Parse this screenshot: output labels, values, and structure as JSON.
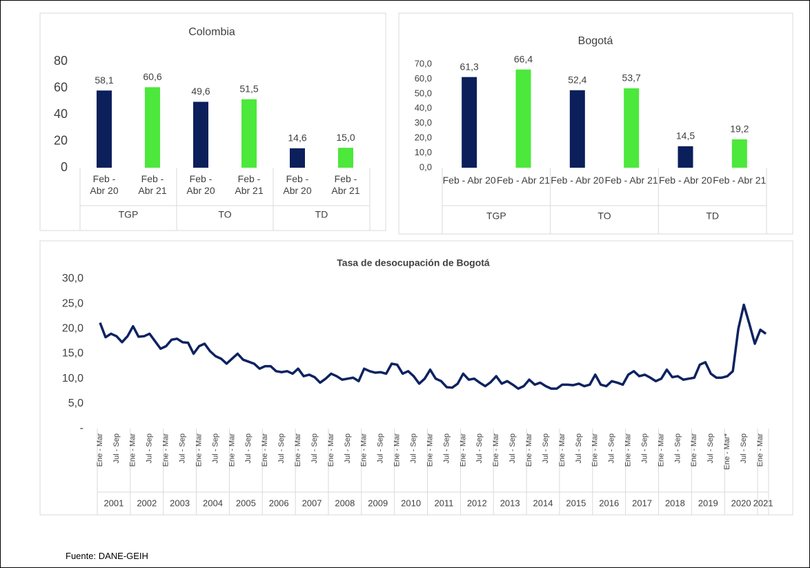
{
  "chart_data": [
    {
      "type": "bar",
      "title": "Colombia",
      "categories": [
        "TGP",
        "TO",
        "TD"
      ],
      "series": [
        {
          "name": "Feb - Abr 20",
          "color": "#0b1f5b",
          "values": [
            58.1,
            49.6,
            14.6
          ],
          "value_labels": [
            "58,1",
            "49,6",
            "14,6"
          ]
        },
        {
          "name": "Feb - Abr 21",
          "color": "#4ce83b",
          "values": [
            60.6,
            51.5,
            15.0
          ],
          "value_labels": [
            "60,6",
            "51,5",
            "15,0"
          ]
        }
      ],
      "ylim": [
        0,
        80
      ],
      "yticks": [
        0,
        20,
        40,
        60,
        80
      ]
    },
    {
      "type": "bar",
      "title": "Bogotá",
      "categories": [
        "TGP",
        "TO",
        "TD"
      ],
      "series": [
        {
          "name": "Feb - Abr 20",
          "color": "#0b1f5b",
          "values": [
            61.3,
            52.4,
            14.5
          ],
          "value_labels": [
            "61,3",
            "52,4",
            "14,5"
          ]
        },
        {
          "name": "Feb - Abr 21",
          "color": "#4ce83b",
          "values": [
            66.4,
            53.7,
            19.2
          ],
          "value_labels": [
            "66,4",
            "53,7",
            "19,2"
          ]
        }
      ],
      "ylim": [
        0,
        70
      ],
      "yticks": [
        {
          "value": 0,
          "label": "0,0"
        },
        {
          "value": 10,
          "label": "10,0"
        },
        {
          "value": 20,
          "label": "20,0"
        },
        {
          "value": 30,
          "label": "30,0"
        },
        {
          "value": 40,
          "label": "40,0"
        },
        {
          "value": 50,
          "label": "50,0"
        },
        {
          "value": 60,
          "label": "60,0"
        },
        {
          "value": 70,
          "label": "70,0"
        }
      ]
    },
    {
      "type": "line",
      "title": "Tasa de desocupación de Bogotá",
      "color": "#0d2260",
      "groups": [
        {
          "label": "2001",
          "categories": [
            "Ene - Mar",
            null,
            null,
            "Jul - Sep",
            null,
            null
          ]
        },
        {
          "label": "2002",
          "categories": [
            "Ene - Mar",
            null,
            null,
            "Jul - Sep",
            null,
            null
          ]
        },
        {
          "label": "2003",
          "categories": [
            "Ene - Mar",
            null,
            null,
            "Jul - Sep",
            null,
            null
          ]
        },
        {
          "label": "2004",
          "categories": [
            "Ene - Mar",
            null,
            null,
            "Jul - Sep",
            null,
            null
          ]
        },
        {
          "label": "2005",
          "categories": [
            "Ene - Mar",
            null,
            null,
            "Jul - Sep",
            null,
            null
          ]
        },
        {
          "label": "2006",
          "categories": [
            "Ene - Mar",
            null,
            null,
            "Jul - Sep",
            null,
            null
          ]
        },
        {
          "label": "2007",
          "categories": [
            "Ene - Mar",
            null,
            null,
            "Jul - Sep",
            null,
            null
          ]
        },
        {
          "label": "2008",
          "categories": [
            "Ene - Mar",
            null,
            null,
            "Jul - Sep",
            null,
            null
          ]
        },
        {
          "label": "2009",
          "categories": [
            "Ene - Mar",
            null,
            null,
            "Jul - Sep",
            null,
            null
          ]
        },
        {
          "label": "2010",
          "categories": [
            "Ene - Mar",
            null,
            null,
            "Jul - Sep",
            null,
            null
          ]
        },
        {
          "label": "2011",
          "categories": [
            "Ene - Mar",
            null,
            null,
            "Jul - Sep",
            null,
            null
          ]
        },
        {
          "label": "2012",
          "categories": [
            "Ene - Mar",
            null,
            null,
            "Jul - Sep",
            null,
            null
          ]
        },
        {
          "label": "2013",
          "categories": [
            "Ene - Mar",
            null,
            null,
            "Jul - Sep",
            null,
            null
          ]
        },
        {
          "label": "2014",
          "categories": [
            "Ene - Mar",
            null,
            null,
            "Jul - Sep",
            null,
            null
          ]
        },
        {
          "label": "2015",
          "categories": [
            "Ene - Mar",
            null,
            null,
            "Jul - Sep",
            null,
            null
          ]
        },
        {
          "label": "2016",
          "categories": [
            "Ene - Mar",
            null,
            null,
            "Jul - Sep",
            null,
            null
          ]
        },
        {
          "label": "2017",
          "categories": [
            "Ene - Mar",
            null,
            null,
            "Jul - Sep",
            null,
            null
          ]
        },
        {
          "label": "2018",
          "categories": [
            "Ene - Mar",
            null,
            null,
            "Jul - Sep",
            null,
            null
          ]
        },
        {
          "label": "2019",
          "categories": [
            "Ene - Mar",
            null,
            null,
            "Jul - Sep",
            null,
            null
          ]
        },
        {
          "label": "2020",
          "categories": [
            "Ene - Mar*",
            null,
            null,
            "Jul - Sep",
            null,
            null
          ]
        },
        {
          "label": "2021",
          "categories": [
            "Ene - Mar",
            null
          ]
        }
      ],
      "values": [
        21.2,
        18.3,
        19,
        18.5,
        17.3,
        18.5,
        20.5,
        18.4,
        18.5,
        19,
        17.5,
        16,
        16.5,
        17.8,
        18,
        17.3,
        17.2,
        15,
        16.5,
        17,
        15.5,
        14.5,
        14,
        13,
        14,
        15,
        13.8,
        13.4,
        13,
        12,
        12.5,
        12.5,
        11.5,
        11.3,
        11.5,
        11,
        12,
        10.5,
        10.8,
        10.3,
        9.2,
        10,
        11,
        10.5,
        9.8,
        10,
        10.2,
        9.5,
        12,
        11.5,
        11.2,
        11.3,
        11,
        13,
        12.8,
        11,
        11.5,
        10.5,
        9,
        10,
        11.8,
        10,
        9.5,
        8.3,
        8.2,
        9,
        11,
        9.8,
        10,
        9.2,
        8.5,
        9.3,
        10.5,
        9,
        9.5,
        8.8,
        8,
        8.5,
        9.8,
        8.8,
        9.2,
        8.5,
        8,
        8,
        8.8,
        8.8,
        8.7,
        9,
        8.5,
        8.8,
        10.8,
        8.8,
        8.5,
        9.5,
        9.2,
        8.8,
        10.8,
        11.5,
        10.5,
        10.8,
        10.2,
        9.5,
        10,
        11.8,
        10.3,
        10.5,
        9.8,
        10,
        10.2,
        12.8,
        13.3,
        11,
        10.2,
        10.2,
        10.5,
        11.5,
        20,
        24.8,
        21,
        17,
        19.8,
        19
      ],
      "ylim": [
        0,
        30
      ],
      "yticks": [
        {
          "value": 0,
          "label": "-"
        },
        {
          "value": 5,
          "label": "5,0"
        },
        {
          "value": 10,
          "label": "10,0"
        },
        {
          "value": 15,
          "label": "15,0"
        },
        {
          "value": 20,
          "label": "20,0"
        },
        {
          "value": 25,
          "label": "25,0"
        },
        {
          "value": 30,
          "label": "30,0"
        }
      ]
    }
  ],
  "source": "Fuente: DANE-GEIH"
}
